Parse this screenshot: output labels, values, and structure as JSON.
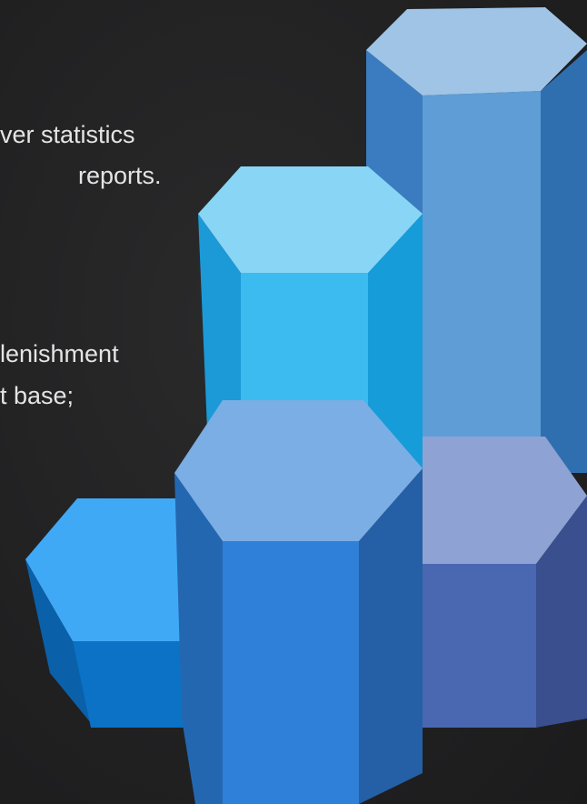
{
  "text_lines": [
    "ver statistics",
    "reports.",
    "lenishment",
    "t base;"
  ]
}
